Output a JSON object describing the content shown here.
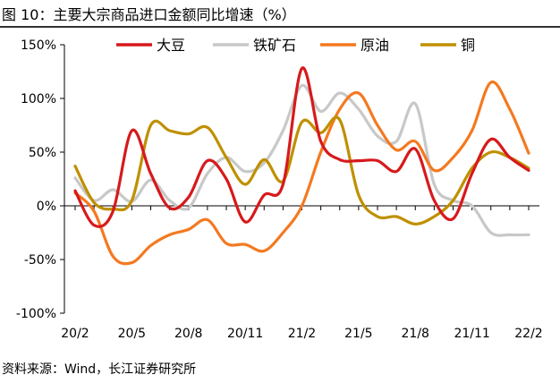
{
  "title": "图 10：主要大宗商品进口金额同比增速（%）",
  "source": "资料来源：Wind，长江证券研究所",
  "chart_data": {
    "type": "line",
    "title": "图 10：主要大宗商品进口金额同比增速（%）",
    "xlabel": "",
    "ylabel": "",
    "ylim": [
      -100,
      150
    ],
    "yticks": [
      -100,
      -50,
      0,
      50,
      100,
      150
    ],
    "ytick_labels": [
      "-100%",
      "-50%",
      "0%",
      "50%",
      "100%",
      "150%"
    ],
    "xticks": [
      "20/2",
      "20/5",
      "20/8",
      "20/11",
      "21/2",
      "21/5",
      "21/8",
      "21/11",
      "22/2"
    ],
    "x": [
      "20/2",
      "20/3",
      "20/4",
      "20/5",
      "20/6",
      "20/7",
      "20/8",
      "20/9",
      "20/10",
      "20/11",
      "20/12",
      "21/1",
      "21/2",
      "21/3",
      "21/4",
      "21/5",
      "21/6",
      "21/7",
      "21/8",
      "21/9",
      "21/10",
      "21/11",
      "21/12",
      "22/1",
      "22/2"
    ],
    "legend_position": "top",
    "series": [
      {
        "name": "大豆",
        "color": "#D7191C",
        "values": [
          14,
          -18,
          -5,
          70,
          30,
          -2,
          8,
          42,
          25,
          -15,
          10,
          20,
          128,
          60,
          43,
          42,
          42,
          32,
          53,
          5,
          -12,
          30,
          62,
          45,
          33
        ]
      },
      {
        "name": "铁矿石",
        "color": "#C8C8C8",
        "values": [
          26,
          5,
          15,
          4,
          24,
          5,
          -2,
          30,
          45,
          32,
          40,
          70,
          112,
          88,
          105,
          90,
          65,
          60,
          95,
          20,
          5,
          0,
          -25,
          -27,
          -27
        ]
      },
      {
        "name": "原油",
        "color": "#F47920",
        "values": [
          12,
          -5,
          -47,
          -53,
          -37,
          -27,
          -22,
          -13,
          -35,
          -36,
          -42,
          -25,
          0,
          50,
          90,
          105,
          75,
          52,
          60,
          33,
          45,
          70,
          115,
          90,
          49
        ]
      },
      {
        "name": "铜",
        "color": "#BF9000",
        "values": [
          37,
          3,
          -3,
          5,
          75,
          70,
          67,
          73,
          45,
          20,
          43,
          23,
          78,
          68,
          80,
          10,
          -10,
          -10,
          -17,
          -10,
          5,
          35,
          50,
          45,
          35
        ]
      }
    ]
  }
}
